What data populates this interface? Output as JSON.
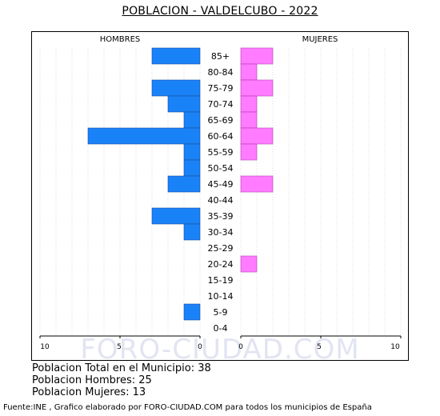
{
  "title": "POBLACION - VALDELCUBO - 2022",
  "watermark": "FORO-CIUDAD.COM",
  "stats": {
    "total": "Poblacion Total en el Municipio: 38",
    "men": "Poblacion Hombres: 25",
    "women": "Poblacion Mujeres: 13"
  },
  "source": "Fuente:INE , Grafico elaborado por FORO-CIUDAD.COM para todos los municipios de España",
  "chart_data": {
    "type": "bar",
    "orientation": "horizontal-pyramid",
    "categories": [
      "85+",
      "80-84",
      "75-79",
      "70-74",
      "65-69",
      "60-64",
      "55-59",
      "50-54",
      "45-49",
      "40-44",
      "35-39",
      "30-34",
      "25-29",
      "20-24",
      "15-19",
      "10-14",
      "5-9",
      "0-4"
    ],
    "series": [
      {
        "name": "HOMBRES",
        "color": "#1a82f7",
        "values": [
          3,
          0,
          3,
          2,
          1,
          7,
          1,
          1,
          2,
          0,
          3,
          1,
          0,
          0,
          0,
          0,
          1,
          0
        ]
      },
      {
        "name": "MUJERES",
        "color": "#ff7bff",
        "values": [
          2,
          1,
          2,
          1,
          1,
          2,
          1,
          0,
          2,
          0,
          0,
          0,
          0,
          1,
          0,
          0,
          0,
          0
        ]
      }
    ],
    "xlim": [
      0,
      10
    ],
    "xticks": [
      "10",
      "5",
      "0",
      "0",
      "5",
      "10"
    ],
    "grid": true
  }
}
